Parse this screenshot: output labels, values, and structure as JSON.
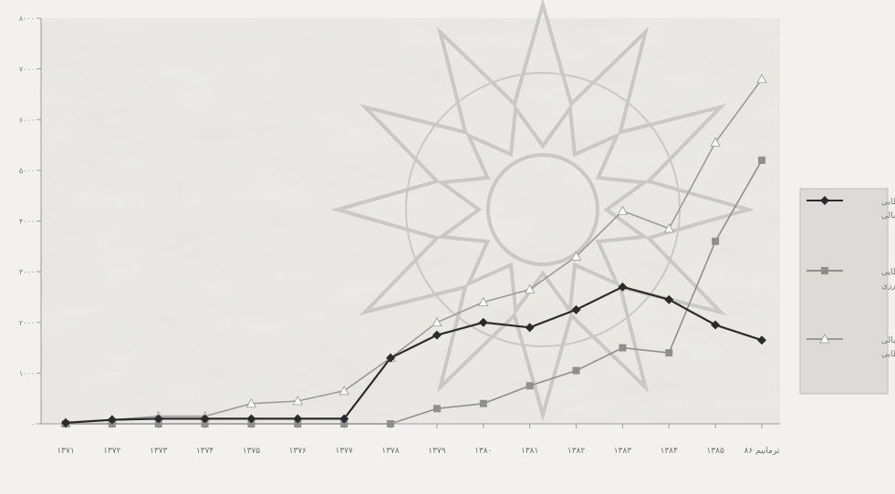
{
  "chart_data": {
    "type": "line",
    "title": "",
    "xlabel": "",
    "ylabel": "",
    "ylim": [
      0,
      8000
    ],
    "yticks": [
      0,
      1000,
      2000,
      3000,
      4000,
      5000,
      6000,
      7000,
      8000
    ],
    "ytick_labels": [
      "۰",
      "۱۰۰۰",
      "۲۰۰۰",
      "۳۰۰۰",
      "۴۰۰۰",
      "۵۰۰۰",
      "۶۰۰۰",
      "۷۰۰۰",
      "۸۰۰۰"
    ],
    "categories": [
      "۱۳۷۱",
      "۱۳۷۲",
      "۱۳۷۳",
      "۱۳۷۴",
      "۱۳۷۵",
      "۱۳۷۶",
      "۱۳۷۷",
      "۱۳۷۸",
      "۱۳۷۹",
      "۱۳۸۰",
      "۱۳۸۱",
      "۱۳۸۲",
      "۱۳۸۳",
      "۱۳۸۴",
      "۱۳۸۵",
      "ترمابیم ۸۶"
    ],
    "grid": false,
    "legend_position": "right",
    "series": [
      {
        "name": "تسهیلات اعطایی ریالی",
        "color": "#2b2b2b",
        "marker": "diamond",
        "values": [
          20,
          80,
          100,
          100,
          100,
          100,
          100,
          1300,
          1750,
          2000,
          1900,
          2250,
          2700,
          2450,
          1950,
          1650
        ]
      },
      {
        "name": "تسهیلات اعطایی ارزی",
        "color": "#8f8f8f",
        "marker": "square",
        "values": [
          0,
          0,
          0,
          0,
          0,
          0,
          0,
          0,
          300,
          400,
          750,
          1050,
          1500,
          1400,
          3600,
          5200
        ]
      },
      {
        "name": "معادل ریالی تسهیلات اعطایی",
        "color": "#9a9a9a",
        "marker": "triangle",
        "values": [
          20,
          80,
          150,
          150,
          400,
          450,
          650,
          1300,
          2000,
          2400,
          2650,
          3300,
          4200,
          3850,
          5550,
          6800
        ]
      }
    ]
  }
}
